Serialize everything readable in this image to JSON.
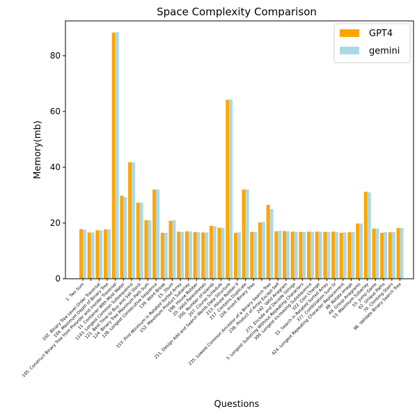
{
  "chart_data": {
    "type": "bar",
    "title": "Space Complexity Comparison",
    "xlabel": "Questions",
    "ylabel": "Memory(mb)",
    "ylim": [
      0,
      92.5
    ],
    "yticks": [
      0,
      20,
      40,
      60,
      80
    ],
    "grid": false,
    "legend_position": "top-right",
    "categories": [
      "1. Two Sum",
      "100. Same Tree",
      "102. Binary Tree Level Order Traversal",
      "104. Maximum Depth of Binary Tree",
      "105. Construct Binary Tree from Preorder and Inorder Traversal",
      "11. Container With Most Water",
      "1143. Longest Common Subsequence",
      "121. Best Time to Buy and Sell Stock",
      "124. Binary Tree Maximum Path Sum",
      "128. Longest Consecutive Sequence",
      "139. Word Break",
      "15. 3Sum",
      "153. Find Minimum in Rotated Sorted Array",
      "152. Maximum Product Subarray",
      "198. House Robber",
      "20. Valid Parentheses",
      "200. Number of Islands",
      "207. Course Schedule",
      "211. Design Add and Search Words Data Structure",
      "213. House Robber II",
      "217. Contains Duplicate",
      "226. Invert Binary Tree",
      "230. Kth Smallest Element in a BST",
      "235. Lowest Common Ancestor of a Binary Search Tree",
      "238. Product of Array Except Self",
      "242. Valid Anagram",
      "271. Encode and Decode Strings",
      "3. Longest Substring Without Repeating Characters",
      "300. Longest Increasing Subsequence",
      "322. Coin Change",
      "33. Search in Rotated Sorted Array",
      "377. Combination Sum IV",
      "424. Longest Repeating Character Replacement",
      "48. Rotate Image",
      "49. Group Anagrams",
      "53. Maximum Subarray",
      "55. Jump Game",
      "62. Unique Paths",
      "70. Climbing Stairs",
      "98. Validate Binary Search Tree"
    ],
    "xtick_labels_shown": [
      "1. Two Sum",
      "102. Binary Tree Level Order Traversal",
      "104. Maximum Depth of Binary Tree",
      "105. Construct Binary Tree from Preorder and Inorder Traversal",
      "11. Container With Most Water",
      "1143. Longest Common Subsequence",
      "121. Best Time to Buy and Sell Stock",
      "124. Binary Tree Maximum Path Sum",
      "128. Longest Consecutive Sequence",
      "139. Word Break",
      "15. 3Sum",
      "153. Find Minimum in Rotated Sorted Array",
      "152. Maximum Product Subarray",
      "198. House Robber",
      "20. Valid Parentheses",
      "200. Number of Islands",
      "207. Course Schedule",
      "211. Design Add and Search Words Data Structure",
      "213. House Robber II",
      "217. Contains Duplicate",
      "226. Invert Binary Tree",
      "235. Lowest Common Ancestor of a Binary Search Tree",
      "238. Product of Array Except Self",
      "242. Valid Anagram",
      "271. Encode and Decode Strings",
      "3. Longest Substring Without Repeating Characters",
      "300. Longest Increasing Subsequence",
      "322. Coin Change",
      "33. Search in Rotated Sorted Array",
      "377. Combination Sum IV",
      "424. Longest Repeating Character Replacement",
      "48. Rotate Image",
      "49. Group Anagrams",
      "53. Maximum Subarray",
      "55. Jump Game",
      "62. Unique Paths",
      "70. Climbing Stairs",
      "98. Validate Binary Search Tree"
    ],
    "series": [
      {
        "name": "GPT4",
        "color": "#ffa500",
        "values": [
          17.8,
          16.6,
          17.4,
          17.7,
          88.3,
          29.8,
          41.8,
          27.3,
          21.0,
          32.0,
          16.5,
          20.8,
          16.9,
          17.0,
          16.7,
          16.6,
          19.0,
          18.3,
          64.2,
          16.5,
          32.0,
          16.8,
          20.2,
          26.5,
          17.0,
          17.1,
          16.9,
          16.8,
          16.9,
          16.9,
          16.8,
          16.9,
          16.5,
          16.7,
          19.8,
          31.2,
          18.0,
          16.5,
          16.7,
          18.2
        ]
      },
      {
        "name": "gemini",
        "color": "#add8e6",
        "values": [
          17.6,
          16.6,
          17.4,
          17.7,
          88.5,
          29.3,
          41.8,
          27.3,
          21.0,
          32.0,
          16.5,
          21.0,
          16.8,
          17.0,
          16.7,
          16.6,
          18.8,
          18.2,
          64.3,
          16.6,
          32.0,
          16.8,
          20.4,
          25.0,
          17.2,
          17.0,
          16.8,
          16.8,
          16.8,
          16.9,
          16.8,
          16.8,
          16.6,
          16.8,
          19.8,
          31.0,
          18.0,
          16.8,
          16.7,
          18.2
        ]
      }
    ]
  }
}
